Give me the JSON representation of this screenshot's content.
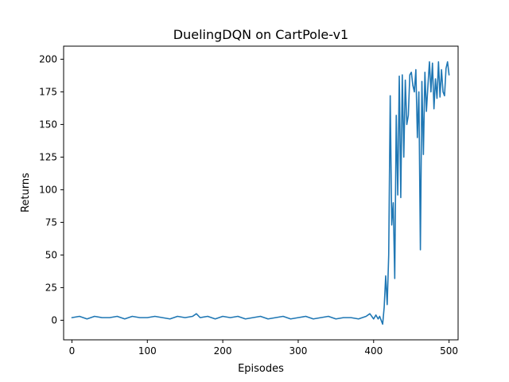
{
  "chart_data": {
    "type": "line",
    "title": "DuelingDQN on CartPole-v1",
    "xlabel": "Episodes",
    "ylabel": "Returns",
    "xlim": [
      -11,
      512
    ],
    "ylim": [
      -15,
      210
    ],
    "xticks": [
      0,
      100,
      200,
      300,
      400,
      500
    ],
    "yticks": [
      0,
      25,
      50,
      75,
      100,
      125,
      150,
      175,
      200
    ],
    "grid": false,
    "legend": "none",
    "series": [
      {
        "color": "#1f77b4",
        "x": [
          0,
          10,
          20,
          30,
          40,
          50,
          60,
          70,
          80,
          90,
          100,
          110,
          120,
          130,
          140,
          150,
          160,
          165,
          170,
          180,
          190,
          200,
          210,
          220,
          230,
          240,
          250,
          260,
          270,
          280,
          290,
          300,
          310,
          320,
          330,
          340,
          350,
          360,
          370,
          380,
          390,
          395,
          400,
          403,
          406,
          408,
          410,
          412,
          414,
          416,
          418,
          420,
          422,
          424,
          426,
          428,
          430,
          432,
          434,
          436,
          438,
          440,
          442,
          444,
          446,
          448,
          450,
          452,
          454,
          456,
          458,
          460,
          462,
          464,
          466,
          468,
          470,
          472,
          474,
          476,
          478,
          480,
          482,
          484,
          486,
          488,
          490,
          492,
          494,
          496,
          498,
          500
        ],
        "y": [
          2,
          3,
          1,
          3,
          2,
          2,
          3,
          1,
          3,
          2,
          2,
          3,
          2,
          1,
          3,
          2,
          3,
          5,
          2,
          3,
          1,
          3,
          2,
          3,
          1,
          2,
          3,
          1,
          2,
          3,
          1,
          2,
          3,
          1,
          2,
          3,
          1,
          2,
          2,
          1,
          3,
          5,
          1,
          4,
          1,
          3,
          0,
          -3,
          10,
          34,
          12,
          50,
          172,
          73,
          90,
          32,
          157,
          96,
          187,
          94,
          188,
          125,
          184,
          150,
          157,
          188,
          190,
          180,
          175,
          192,
          140,
          175,
          54,
          183,
          127,
          190,
          160,
          180,
          198,
          175,
          197,
          162,
          185,
          170,
          198,
          171,
          192,
          175,
          172,
          193,
          198,
          188
        ]
      }
    ]
  }
}
